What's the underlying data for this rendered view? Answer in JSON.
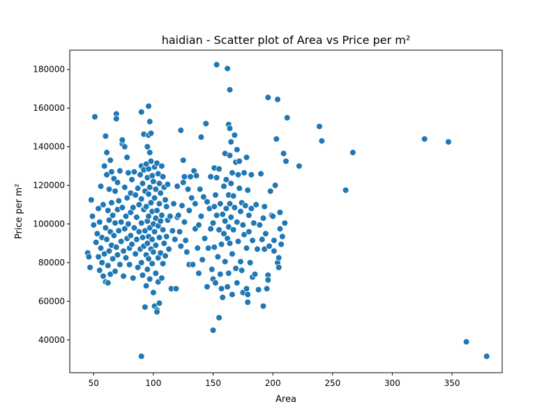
{
  "chart_data": {
    "type": "scatter",
    "title": "haidian - Scatter plot of Area vs Price per m²",
    "xlabel": "Area",
    "ylabel": "Price per m²",
    "xlim": [
      30,
      392
    ],
    "ylim": [
      23000,
      190000
    ],
    "xticks": [
      50,
      100,
      150,
      200,
      250,
      300,
      350
    ],
    "yticks": [
      40000,
      60000,
      80000,
      100000,
      120000,
      140000,
      160000,
      180000
    ],
    "grid": false,
    "legend": "none",
    "marker_color": "#1f77b4",
    "marker_edge_color": "#ffffff",
    "points": [
      [
        45,
        85000
      ],
      [
        46,
        83000
      ],
      [
        47,
        77500
      ],
      [
        48,
        112500
      ],
      [
        49,
        104000
      ],
      [
        50,
        99500
      ],
      [
        51,
        155500
      ],
      [
        52,
        90500
      ],
      [
        53,
        95000
      ],
      [
        54,
        108000
      ],
      [
        54,
        83000
      ],
      [
        55,
        76000
      ],
      [
        55,
        101000
      ],
      [
        56,
        87500
      ],
      [
        56,
        119500
      ],
      [
        57,
        93000
      ],
      [
        57,
        80000
      ],
      [
        58,
        110000
      ],
      [
        58,
        73000
      ],
      [
        59,
        130000
      ],
      [
        59,
        84500
      ],
      [
        60,
        145500
      ],
      [
        60,
        98000
      ],
      [
        60,
        70000
      ],
      [
        61,
        137000
      ],
      [
        61,
        125500
      ],
      [
        61,
        92000
      ],
      [
        62,
        107000
      ],
      [
        62,
        78500
      ],
      [
        62,
        69500
      ],
      [
        63,
        118000
      ],
      [
        63,
        102000
      ],
      [
        63,
        86000
      ],
      [
        64,
        133000
      ],
      [
        64,
        96000
      ],
      [
        64,
        74000
      ],
      [
        65,
        127000
      ],
      [
        65,
        111000
      ],
      [
        65,
        89000
      ],
      [
        66,
        82000
      ],
      [
        66,
        104500
      ],
      [
        67,
        123500
      ],
      [
        67,
        94000
      ],
      [
        68,
        75500
      ],
      [
        68,
        117000
      ],
      [
        68,
        100500
      ],
      [
        69,
        157000
      ],
      [
        69,
        154500
      ],
      [
        69,
        88000
      ],
      [
        70,
        121500
      ],
      [
        70,
        107500
      ],
      [
        70,
        84000
      ],
      [
        71,
        112000
      ],
      [
        71,
        96500
      ],
      [
        72,
        79000
      ],
      [
        72,
        127500
      ],
      [
        73,
        101000
      ],
      [
        73,
        91000
      ],
      [
        74,
        141500
      ],
      [
        74,
        143500
      ],
      [
        74,
        108500
      ],
      [
        75,
        86000
      ],
      [
        75,
        73000
      ],
      [
        76,
        140000
      ],
      [
        76,
        119000
      ],
      [
        76,
        97500
      ],
      [
        77,
        104000
      ],
      [
        77,
        82500
      ],
      [
        78,
        134500
      ],
      [
        78,
        113500
      ],
      [
        78,
        92500
      ],
      [
        79,
        126500
      ],
      [
        79,
        100000
      ],
      [
        80,
        87500
      ],
      [
        80,
        79000
      ],
      [
        81,
        116000
      ],
      [
        81,
        106000
      ],
      [
        81,
        94000
      ],
      [
        82,
        123000
      ],
      [
        82,
        89500
      ],
      [
        83,
        108500
      ],
      [
        83,
        72000
      ],
      [
        84,
        127000
      ],
      [
        84,
        98000
      ],
      [
        85,
        115000
      ],
      [
        85,
        84500
      ],
      [
        86,
        103500
      ],
      [
        86,
        92000
      ],
      [
        87,
        118500
      ],
      [
        87,
        77500
      ],
      [
        88,
        110000
      ],
      [
        88,
        96000
      ],
      [
        89,
        125500
      ],
      [
        89,
        87000
      ],
      [
        90,
        158000
      ],
      [
        90,
        130000
      ],
      [
        90,
        113000
      ],
      [
        90,
        100500
      ],
      [
        90,
        80000
      ],
      [
        90,
        31500
      ],
      [
        91,
        121000
      ],
      [
        91,
        93000
      ],
      [
        91,
        73500
      ],
      [
        92,
        146500
      ],
      [
        92,
        128000
      ],
      [
        92,
        107500
      ],
      [
        92,
        88500
      ],
      [
        93,
        57000
      ],
      [
        93,
        117000
      ],
      [
        93,
        96500
      ],
      [
        94,
        131000
      ],
      [
        94,
        109000
      ],
      [
        94,
        84000
      ],
      [
        94,
        68000
      ],
      [
        95,
        140000
      ],
      [
        95,
        124000
      ],
      [
        95,
        101500
      ],
      [
        95,
        90000
      ],
      [
        95,
        76500
      ],
      [
        96,
        161000
      ],
      [
        96,
        146000
      ],
      [
        96,
        128500
      ],
      [
        96,
        115500
      ],
      [
        96,
        104000
      ],
      [
        96,
        93500
      ],
      [
        96,
        82000
      ],
      [
        97,
        153000
      ],
      [
        97,
        137000
      ],
      [
        97,
        119000
      ],
      [
        97,
        98000
      ],
      [
        97,
        71500
      ],
      [
        98,
        147000
      ],
      [
        98,
        132500
      ],
      [
        98,
        111000
      ],
      [
        98,
        87000
      ],
      [
        99,
        125000
      ],
      [
        99,
        106500
      ],
      [
        99,
        92000
      ],
      [
        99,
        79500
      ],
      [
        100,
        122000
      ],
      [
        100,
        100000
      ],
      [
        100,
        85500
      ],
      [
        100,
        64500
      ],
      [
        101,
        129500
      ],
      [
        101,
        113500
      ],
      [
        101,
        96000
      ],
      [
        101,
        57500
      ],
      [
        102,
        118000
      ],
      [
        102,
        103000
      ],
      [
        102,
        89000
      ],
      [
        102,
        74500
      ],
      [
        103,
        131500
      ],
      [
        103,
        107000
      ],
      [
        103,
        55500
      ],
      [
        103,
        54500
      ],
      [
        104,
        126000
      ],
      [
        104,
        99000
      ],
      [
        104,
        82500
      ],
      [
        104,
        70000
      ],
      [
        105,
        121000
      ],
      [
        105,
        110500
      ],
      [
        105,
        93000
      ],
      [
        105,
        59000
      ],
      [
        106,
        116000
      ],
      [
        106,
        101500
      ],
      [
        106,
        85000
      ],
      [
        107,
        130000
      ],
      [
        107,
        104500
      ],
      [
        107,
        72000
      ],
      [
        108,
        124500
      ],
      [
        108,
        97000
      ],
      [
        108,
        79500
      ],
      [
        109,
        119000
      ],
      [
        109,
        90000
      ],
      [
        110,
        112500
      ],
      [
        110,
        83500
      ],
      [
        111,
        109000
      ],
      [
        111,
        93500
      ],
      [
        112,
        120500
      ],
      [
        112,
        102000
      ],
      [
        113,
        87000
      ],
      [
        114,
        104000
      ],
      [
        115,
        66500
      ],
      [
        116,
        96500
      ],
      [
        117,
        110500
      ],
      [
        118,
        92000
      ],
      [
        119,
        66500
      ],
      [
        120,
        119500
      ],
      [
        120,
        103500
      ],
      [
        121,
        104500
      ],
      [
        122,
        96000
      ],
      [
        123,
        148500
      ],
      [
        123,
        88500
      ],
      [
        124,
        109500
      ],
      [
        125,
        133000
      ],
      [
        125,
        121500
      ],
      [
        126,
        124500
      ],
      [
        126,
        101000
      ],
      [
        127,
        91500
      ],
      [
        128,
        85500
      ],
      [
        129,
        118000
      ],
      [
        130,
        79000
      ],
      [
        130,
        107000
      ],
      [
        131,
        124500
      ],
      [
        132,
        113500
      ],
      [
        133,
        79000
      ],
      [
        134,
        127500
      ],
      [
        135,
        110500
      ],
      [
        135,
        97500
      ],
      [
        136,
        125000
      ],
      [
        137,
        87500
      ],
      [
        138,
        74500
      ],
      [
        138,
        99500
      ],
      [
        139,
        118000
      ],
      [
        140,
        145000
      ],
      [
        140,
        104000
      ],
      [
        141,
        81500
      ],
      [
        142,
        114000
      ],
      [
        143,
        92500
      ],
      [
        144,
        152000
      ],
      [
        145,
        111500
      ],
      [
        145,
        67500
      ],
      [
        146,
        87500
      ],
      [
        147,
        108000
      ],
      [
        148,
        124500
      ],
      [
        148,
        97500
      ],
      [
        149,
        76500
      ],
      [
        150,
        100500
      ],
      [
        150,
        71500
      ],
      [
        150,
        45000
      ],
      [
        151,
        129000
      ],
      [
        151,
        109000
      ],
      [
        151,
        88000
      ],
      [
        152,
        69500
      ],
      [
        152,
        115000
      ],
      [
        153,
        182500
      ],
      [
        153,
        124000
      ],
      [
        153,
        104500
      ],
      [
        154,
        83000
      ],
      [
        155,
        128500
      ],
      [
        155,
        97000
      ],
      [
        155,
        51500
      ],
      [
        156,
        110500
      ],
      [
        156,
        74000
      ],
      [
        157,
        89500
      ],
      [
        157,
        66500
      ],
      [
        158,
        105000
      ],
      [
        158,
        62000
      ],
      [
        159,
        119500
      ],
      [
        159,
        95000
      ],
      [
        160,
        136500
      ],
      [
        160,
        101500
      ],
      [
        160,
        80500
      ],
      [
        161,
        123000
      ],
      [
        161,
        108000
      ],
      [
        162,
        180500
      ],
      [
        162,
        92500
      ],
      [
        162,
        67500
      ],
      [
        163,
        151500
      ],
      [
        163,
        115000
      ],
      [
        163,
        98500
      ],
      [
        163,
        74500
      ],
      [
        164,
        169500
      ],
      [
        164,
        149500
      ],
      [
        164,
        135500
      ],
      [
        164,
        110500
      ],
      [
        164,
        90000
      ],
      [
        165,
        142500
      ],
      [
        165,
        121000
      ],
      [
        165,
        103500
      ],
      [
        166,
        126500
      ],
      [
        166,
        84500
      ],
      [
        166,
        63500
      ],
      [
        167,
        114500
      ],
      [
        167,
        97000
      ],
      [
        168,
        146000
      ],
      [
        168,
        108500
      ],
      [
        169,
        132000
      ],
      [
        169,
        77000
      ],
      [
        170,
        138500
      ],
      [
        170,
        101000
      ],
      [
        170,
        69500
      ],
      [
        171,
        125500
      ],
      [
        171,
        91000
      ],
      [
        172,
        118500
      ],
      [
        172,
        132500
      ],
      [
        173,
        106500
      ],
      [
        173,
        80500
      ],
      [
        174,
        111000
      ],
      [
        174,
        76000
      ],
      [
        175,
        99500
      ],
      [
        175,
        64500
      ],
      [
        176,
        126500
      ],
      [
        176,
        94500
      ],
      [
        177,
        109500
      ],
      [
        178,
        134500
      ],
      [
        178,
        87500
      ],
      [
        178,
        66500
      ],
      [
        179,
        117500
      ],
      [
        179,
        63500
      ],
      [
        179,
        59500
      ],
      [
        180,
        104500
      ],
      [
        180,
        96000
      ],
      [
        181,
        80000
      ],
      [
        182,
        125500
      ],
      [
        182,
        108000
      ],
      [
        183,
        91500
      ],
      [
        183,
        72500
      ],
      [
        184,
        100500
      ],
      [
        185,
        74000
      ],
      [
        186,
        110000
      ],
      [
        187,
        87000
      ],
      [
        188,
        66000
      ],
      [
        189,
        99500
      ],
      [
        190,
        126000
      ],
      [
        191,
        92000
      ],
      [
        192,
        103000
      ],
      [
        192,
        57500
      ],
      [
        193,
        87000
      ],
      [
        193,
        109000
      ],
      [
        194,
        95000
      ],
      [
        195,
        66500
      ],
      [
        196,
        165500
      ],
      [
        196,
        73500
      ],
      [
        196,
        71000
      ],
      [
        197,
        88500
      ],
      [
        198,
        117000
      ],
      [
        199,
        104500
      ],
      [
        200,
        104000
      ],
      [
        201,
        91500
      ],
      [
        201,
        86000
      ],
      [
        202,
        120000
      ],
      [
        203,
        144000
      ],
      [
        204,
        164500
      ],
      [
        204,
        80000
      ],
      [
        205,
        82500
      ],
      [
        205,
        77500
      ],
      [
        206,
        106000
      ],
      [
        206,
        97500
      ],
      [
        207,
        89500
      ],
      [
        208,
        93500
      ],
      [
        209,
        136500
      ],
      [
        210,
        100500
      ],
      [
        211,
        132500
      ],
      [
        212,
        155000
      ],
      [
        222,
        130000
      ],
      [
        239,
        150500
      ],
      [
        241,
        143000
      ],
      [
        261,
        117500
      ],
      [
        267,
        137000
      ],
      [
        327,
        144000
      ],
      [
        347,
        142500
      ],
      [
        362,
        39000
      ],
      [
        379,
        31500
      ]
    ]
  }
}
